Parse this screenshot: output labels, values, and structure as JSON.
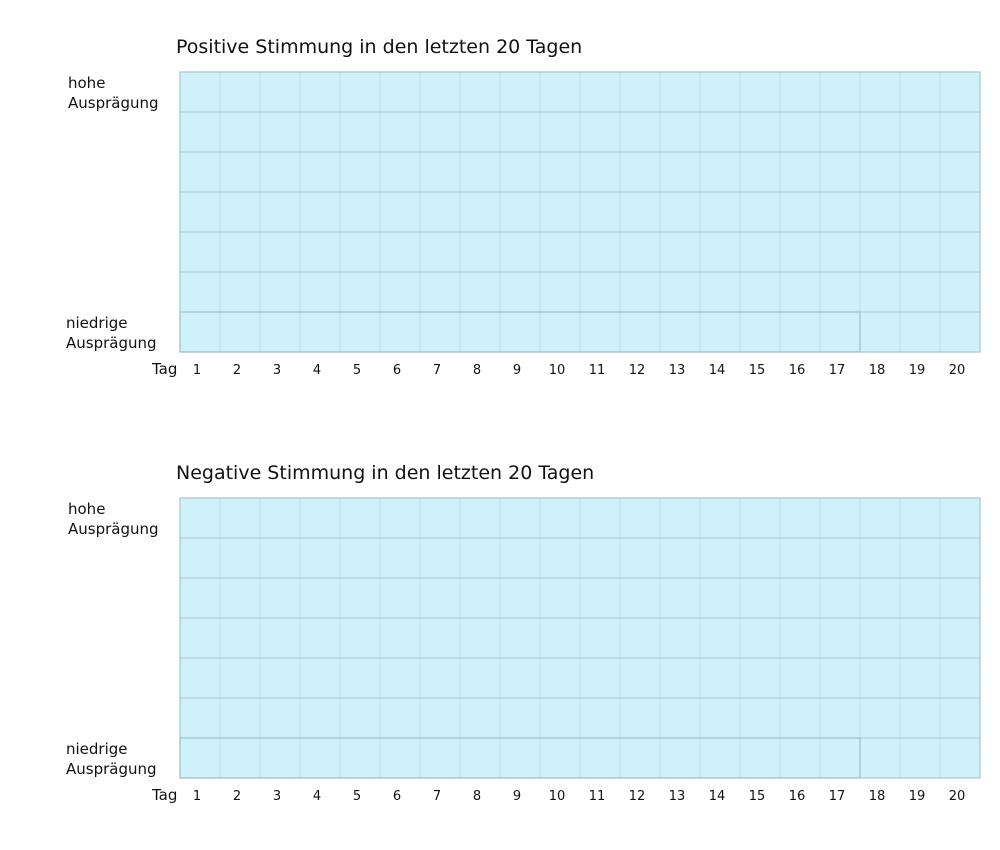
{
  "chart_data": [
    {
      "type": "line",
      "title": "Positive Stimmung in den letzten 20 Tagen",
      "xlabel": "Tag",
      "ylabel_high": [
        "hohe",
        "Ausprägung"
      ],
      "ylabel_low": [
        "niedrige",
        "Ausprägung"
      ],
      "categories": [
        "1",
        "2",
        "3",
        "4",
        "5",
        "6",
        "7",
        "8",
        "9",
        "10",
        "11",
        "12",
        "13",
        "14",
        "15",
        "16",
        "17",
        "18",
        "19",
        "20"
      ],
      "series": [],
      "grid": true,
      "plot_color": "#cff1fa",
      "grid_color": "#9fbfc8"
    },
    {
      "type": "line",
      "title": "Negative Stimmung in den letzten 20 Tagen",
      "xlabel": "Tag",
      "ylabel_high": [
        "hohe",
        "Ausprägung"
      ],
      "ylabel_low": [
        "niedrige",
        "Ausprägung"
      ],
      "categories": [
        "1",
        "2",
        "3",
        "4",
        "5",
        "6",
        "7",
        "8",
        "9",
        "10",
        "11",
        "12",
        "13",
        "14",
        "15",
        "16",
        "17",
        "18",
        "19",
        "20"
      ],
      "series": [],
      "grid": true,
      "plot_color": "#cff1fa",
      "grid_color": "#9fbfc8"
    }
  ]
}
